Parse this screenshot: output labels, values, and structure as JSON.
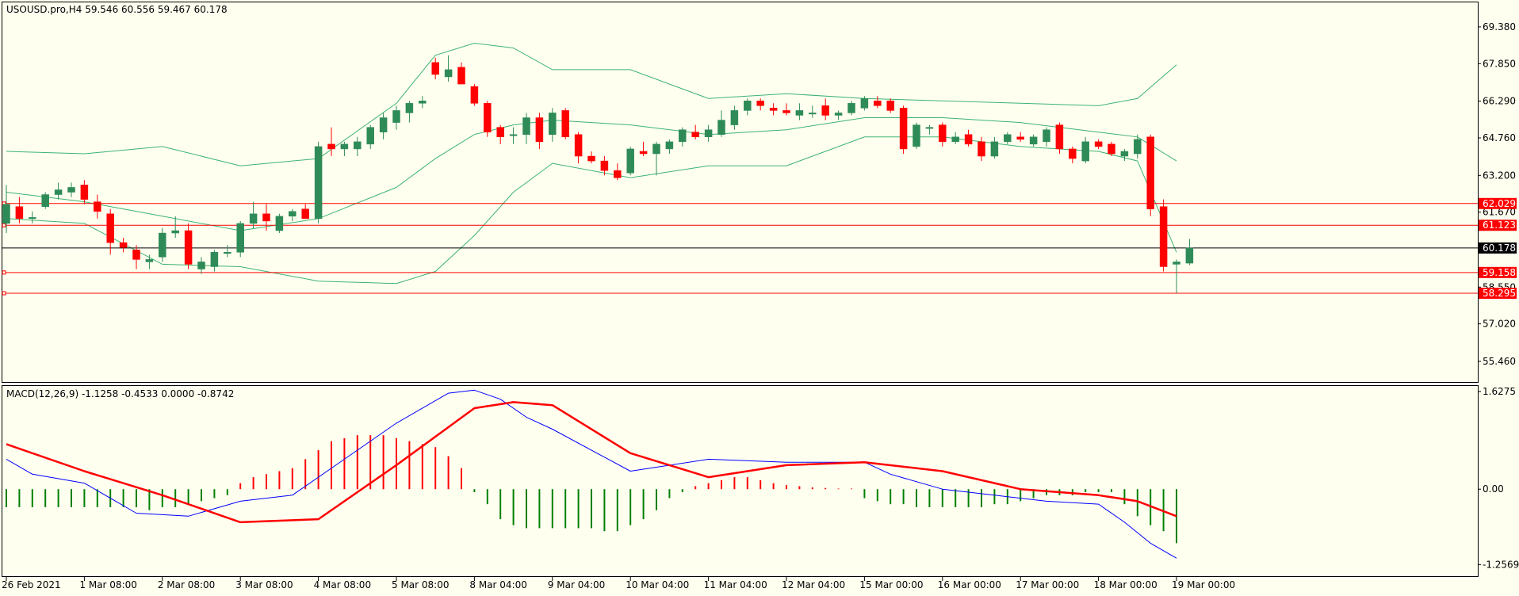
{
  "window": {
    "symbol_label": "USOUSD.pro,H4  59.546 60.556 59.467 60.178"
  },
  "chart_data": {
    "type": "candlestick",
    "price_ticks": [
      69.38,
      67.85,
      66.29,
      64.76,
      63.2,
      61.67,
      58.55,
      57.02,
      55.46
    ],
    "price_tick_labels": [
      "69.380",
      "67.850",
      "66.290",
      "64.760",
      "63.200",
      "61.670",
      "58.550",
      "57.020",
      "55.460"
    ],
    "price_range": [
      54.6,
      70.4
    ],
    "current_price": {
      "value": 60.178,
      "label": "60.178",
      "color": "#000000"
    },
    "horizontal_lines": [
      {
        "value": 62.029,
        "label": "62.029",
        "color": "#FF0000"
      },
      {
        "value": 61.123,
        "label": "61.123",
        "color": "#FF0000"
      },
      {
        "value": 59.158,
        "label": "59.158",
        "color": "#FF0000"
      },
      {
        "value": 58.295,
        "label": "58.295",
        "color": "#FF0000"
      }
    ],
    "x_labels": [
      "26 Feb 2021",
      "1 Mar 08:00",
      "2 Mar 08:00",
      "3 Mar 08:00",
      "4 Mar 08:00",
      "5 Mar 08:00",
      "8 Mar 04:00",
      "9 Mar 04:00",
      "10 Mar 04:00",
      "11 Mar 04:00",
      "12 Mar 04:00",
      "15 Mar 00:00",
      "16 Mar 00:00",
      "17 Mar 00:00",
      "18 Mar 00:00",
      "19 Mar 00:00"
    ],
    "x_label_bars": [
      0,
      6,
      12,
      18,
      24,
      30,
      36,
      42,
      48,
      54,
      60,
      66,
      72,
      78,
      84,
      90
    ],
    "bull_color": "#2E8B57",
    "bear_color": "#FF0000",
    "band_color": "#3CB371",
    "candles": [
      {
        "o": 61.2,
        "h": 62.8,
        "l": 60.8,
        "c": 62.0
      },
      {
        "o": 61.9,
        "h": 62.3,
        "l": 61.2,
        "c": 61.4
      },
      {
        "o": 61.4,
        "h": 61.7,
        "l": 61.2,
        "c": 61.45
      },
      {
        "o": 61.9,
        "h": 62.5,
        "l": 61.8,
        "c": 62.4
      },
      {
        "o": 62.4,
        "h": 62.9,
        "l": 62.2,
        "c": 62.6
      },
      {
        "o": 62.5,
        "h": 62.9,
        "l": 62.3,
        "c": 62.7
      },
      {
        "o": 62.8,
        "h": 63.0,
        "l": 62.0,
        "c": 62.2
      },
      {
        "o": 62.1,
        "h": 62.4,
        "l": 61.4,
        "c": 61.7
      },
      {
        "o": 61.6,
        "h": 61.8,
        "l": 59.9,
        "c": 60.4
      },
      {
        "o": 60.4,
        "h": 60.6,
        "l": 60.0,
        "c": 60.2
      },
      {
        "o": 60.1,
        "h": 60.3,
        "l": 59.3,
        "c": 59.7
      },
      {
        "o": 59.6,
        "h": 59.9,
        "l": 59.3,
        "c": 59.7
      },
      {
        "o": 59.8,
        "h": 61.0,
        "l": 59.6,
        "c": 60.8
      },
      {
        "o": 60.8,
        "h": 61.5,
        "l": 60.6,
        "c": 60.9
      },
      {
        "o": 60.9,
        "h": 61.2,
        "l": 59.3,
        "c": 59.5
      },
      {
        "o": 59.3,
        "h": 59.8,
        "l": 59.1,
        "c": 59.6
      },
      {
        "o": 59.4,
        "h": 60.1,
        "l": 59.2,
        "c": 60.0
      },
      {
        "o": 60.0,
        "h": 60.3,
        "l": 59.8,
        "c": 60.0
      },
      {
        "o": 60.0,
        "h": 61.3,
        "l": 59.8,
        "c": 61.2
      },
      {
        "o": 61.2,
        "h": 62.1,
        "l": 61.0,
        "c": 61.6
      },
      {
        "o": 61.6,
        "h": 62.0,
        "l": 60.9,
        "c": 61.3
      },
      {
        "o": 60.9,
        "h": 61.6,
        "l": 60.8,
        "c": 61.5
      },
      {
        "o": 61.5,
        "h": 61.8,
        "l": 61.3,
        "c": 61.7
      },
      {
        "o": 61.8,
        "h": 62.0,
        "l": 61.4,
        "c": 61.4
      },
      {
        "o": 61.4,
        "h": 64.6,
        "l": 61.2,
        "c": 64.4
      },
      {
        "o": 64.5,
        "h": 65.2,
        "l": 64.0,
        "c": 64.3
      },
      {
        "o": 64.3,
        "h": 64.6,
        "l": 64.0,
        "c": 64.5
      },
      {
        "o": 64.3,
        "h": 64.8,
        "l": 64.0,
        "c": 64.6
      },
      {
        "o": 64.5,
        "h": 65.3,
        "l": 64.3,
        "c": 65.2
      },
      {
        "o": 65.0,
        "h": 65.8,
        "l": 64.7,
        "c": 65.6
      },
      {
        "o": 65.4,
        "h": 66.1,
        "l": 65.1,
        "c": 65.9
      },
      {
        "o": 65.8,
        "h": 66.3,
        "l": 65.4,
        "c": 66.2
      },
      {
        "o": 66.2,
        "h": 66.5,
        "l": 66.0,
        "c": 66.3
      },
      {
        "o": 67.9,
        "h": 68.1,
        "l": 67.2,
        "c": 67.4
      },
      {
        "o": 67.3,
        "h": 68.2,
        "l": 67.1,
        "c": 67.6
      },
      {
        "o": 67.7,
        "h": 67.9,
        "l": 67.0,
        "c": 67.0
      },
      {
        "o": 66.9,
        "h": 67.0,
        "l": 66.1,
        "c": 66.2
      },
      {
        "o": 66.2,
        "h": 66.3,
        "l": 64.8,
        "c": 65.0
      },
      {
        "o": 65.2,
        "h": 65.3,
        "l": 64.5,
        "c": 64.8
      },
      {
        "o": 64.9,
        "h": 65.2,
        "l": 64.5,
        "c": 64.9
      },
      {
        "o": 64.9,
        "h": 65.8,
        "l": 64.5,
        "c": 65.6
      },
      {
        "o": 65.6,
        "h": 65.8,
        "l": 64.3,
        "c": 64.6
      },
      {
        "o": 64.9,
        "h": 66.0,
        "l": 64.6,
        "c": 65.8
      },
      {
        "o": 65.9,
        "h": 66.0,
        "l": 64.7,
        "c": 64.8
      },
      {
        "o": 64.9,
        "h": 65.0,
        "l": 63.7,
        "c": 64.0
      },
      {
        "o": 64.0,
        "h": 64.2,
        "l": 63.7,
        "c": 63.8
      },
      {
        "o": 63.8,
        "h": 64.0,
        "l": 63.2,
        "c": 63.4
      },
      {
        "o": 63.4,
        "h": 63.7,
        "l": 63.0,
        "c": 63.1
      },
      {
        "o": 63.3,
        "h": 64.4,
        "l": 63.2,
        "c": 64.3
      },
      {
        "o": 64.2,
        "h": 64.6,
        "l": 64.0,
        "c": 64.1
      },
      {
        "o": 64.1,
        "h": 64.6,
        "l": 63.2,
        "c": 64.5
      },
      {
        "o": 64.3,
        "h": 64.7,
        "l": 64.1,
        "c": 64.6
      },
      {
        "o": 64.6,
        "h": 65.2,
        "l": 64.4,
        "c": 65.1
      },
      {
        "o": 65.0,
        "h": 65.3,
        "l": 64.7,
        "c": 64.8
      },
      {
        "o": 64.8,
        "h": 65.3,
        "l": 64.6,
        "c": 65.1
      },
      {
        "o": 64.9,
        "h": 65.9,
        "l": 64.8,
        "c": 65.5
      },
      {
        "o": 65.3,
        "h": 66.1,
        "l": 65.1,
        "c": 65.9
      },
      {
        "o": 65.9,
        "h": 66.4,
        "l": 65.7,
        "c": 66.3
      },
      {
        "o": 66.3,
        "h": 66.4,
        "l": 65.9,
        "c": 66.1
      },
      {
        "o": 66.0,
        "h": 66.2,
        "l": 65.7,
        "c": 65.9
      },
      {
        "o": 65.9,
        "h": 66.2,
        "l": 65.7,
        "c": 65.8
      },
      {
        "o": 65.7,
        "h": 66.2,
        "l": 65.5,
        "c": 65.9
      },
      {
        "o": 65.8,
        "h": 66.1,
        "l": 65.6,
        "c": 65.8
      },
      {
        "o": 66.1,
        "h": 66.4,
        "l": 65.5,
        "c": 65.7
      },
      {
        "o": 65.7,
        "h": 65.9,
        "l": 65.5,
        "c": 65.8
      },
      {
        "o": 65.8,
        "h": 66.3,
        "l": 65.7,
        "c": 66.2
      },
      {
        "o": 66.0,
        "h": 66.5,
        "l": 65.9,
        "c": 66.4
      },
      {
        "o": 66.3,
        "h": 66.5,
        "l": 66.0,
        "c": 66.1
      },
      {
        "o": 66.3,
        "h": 66.4,
        "l": 65.8,
        "c": 65.9
      },
      {
        "o": 66.0,
        "h": 66.1,
        "l": 64.1,
        "c": 64.3
      },
      {
        "o": 64.4,
        "h": 65.4,
        "l": 64.3,
        "c": 65.3
      },
      {
        "o": 65.2,
        "h": 65.3,
        "l": 64.9,
        "c": 65.2
      },
      {
        "o": 65.3,
        "h": 65.4,
        "l": 64.4,
        "c": 64.6
      },
      {
        "o": 64.6,
        "h": 65.0,
        "l": 64.5,
        "c": 64.8
      },
      {
        "o": 64.9,
        "h": 65.1,
        "l": 64.4,
        "c": 64.5
      },
      {
        "o": 64.6,
        "h": 64.8,
        "l": 63.8,
        "c": 64.0
      },
      {
        "o": 64.0,
        "h": 64.8,
        "l": 63.9,
        "c": 64.6
      },
      {
        "o": 64.6,
        "h": 65.0,
        "l": 64.5,
        "c": 64.9
      },
      {
        "o": 64.8,
        "h": 65.0,
        "l": 64.6,
        "c": 64.7
      },
      {
        "o": 64.5,
        "h": 64.9,
        "l": 64.4,
        "c": 64.8
      },
      {
        "o": 64.6,
        "h": 65.2,
        "l": 64.4,
        "c": 65.1
      },
      {
        "o": 65.3,
        "h": 65.4,
        "l": 64.1,
        "c": 64.3
      },
      {
        "o": 64.3,
        "h": 64.4,
        "l": 63.7,
        "c": 63.9
      },
      {
        "o": 63.8,
        "h": 64.8,
        "l": 63.7,
        "c": 64.6
      },
      {
        "o": 64.6,
        "h": 64.7,
        "l": 64.3,
        "c": 64.4
      },
      {
        "o": 64.5,
        "h": 64.6,
        "l": 64.0,
        "c": 64.1
      },
      {
        "o": 64.0,
        "h": 64.3,
        "l": 63.8,
        "c": 64.2
      },
      {
        "o": 64.1,
        "h": 64.9,
        "l": 63.9,
        "c": 64.7
      },
      {
        "o": 64.8,
        "h": 64.9,
        "l": 61.5,
        "c": 61.8
      },
      {
        "o": 61.9,
        "h": 62.2,
        "l": 59.2,
        "c": 59.4
      },
      {
        "o": 59.5,
        "h": 59.7,
        "l": 58.3,
        "c": 59.6
      },
      {
        "o": 59.546,
        "h": 60.556,
        "l": 59.467,
        "c": 60.178
      }
    ],
    "bands": {
      "upper_x": [
        0,
        6,
        12,
        18,
        24,
        30,
        33,
        36,
        39,
        42,
        48,
        54,
        60,
        66,
        72,
        78,
        84,
        87,
        90
      ],
      "upper": [
        64.2,
        64.1,
        64.4,
        63.6,
        63.9,
        66.2,
        68.2,
        68.7,
        68.5,
        67.6,
        67.6,
        66.4,
        66.6,
        66.4,
        66.3,
        66.2,
        66.1,
        66.4,
        67.8
      ],
      "middle_x": [
        0,
        6,
        12,
        18,
        24,
        30,
        33,
        36,
        39,
        42,
        48,
        54,
        60,
        66,
        72,
        78,
        84,
        87,
        90
      ],
      "middle": [
        62.5,
        62.1,
        61.5,
        60.9,
        61.4,
        62.7,
        63.9,
        64.9,
        65.3,
        65.5,
        65.3,
        64.9,
        65.1,
        65.6,
        65.6,
        65.4,
        65.0,
        64.8,
        63.8
      ],
      "lower_x": [
        0,
        6,
        12,
        18,
        24,
        30,
        33,
        36,
        39,
        42,
        48,
        54,
        60,
        66,
        72,
        78,
        84,
        87,
        90
      ],
      "lower": [
        61.4,
        61.2,
        59.5,
        59.4,
        58.8,
        58.7,
        59.2,
        60.7,
        62.5,
        63.7,
        63.1,
        63.6,
        63.6,
        64.8,
        64.8,
        64.4,
        64.2,
        63.8,
        60.0
      ]
    },
    "macd": {
      "label": "MACD(12,26,9) -1.1258 -0.4533 0.0000 -0.8742",
      "ticks": [
        1.6275,
        0.0,
        -1.2569
      ],
      "tick_labels": [
        "1.6275",
        "0.00",
        "-1.2569"
      ],
      "range": [
        -1.45,
        1.72
      ],
      "signal_color": "#FF0000",
      "macd_line_color": "#0000FF",
      "hist_pos_color": "#FF0000",
      "hist_neg_color": "#008000",
      "signal_x": [
        0,
        6,
        12,
        18,
        24,
        30,
        36,
        39,
        42,
        48,
        54,
        60,
        66,
        72,
        78,
        84,
        87,
        90
      ],
      "signal": [
        0.75,
        0.3,
        -0.1,
        -0.55,
        -0.5,
        0.4,
        1.35,
        1.45,
        1.4,
        0.6,
        0.2,
        0.4,
        0.45,
        0.3,
        0.0,
        -0.1,
        -0.2,
        -0.45
      ],
      "macd_x": [
        0,
        2,
        6,
        10,
        14,
        18,
        22,
        26,
        30,
        34,
        36,
        38,
        40,
        42,
        48,
        54,
        60,
        66,
        68,
        72,
        76,
        80,
        84,
        86,
        88,
        90
      ],
      "macd_line": [
        0.5,
        0.25,
        0.1,
        -0.4,
        -0.45,
        -0.2,
        -0.1,
        0.5,
        1.1,
        1.6,
        1.65,
        1.5,
        1.2,
        1.0,
        0.3,
        0.5,
        0.45,
        0.45,
        0.25,
        0.0,
        -0.1,
        -0.2,
        -0.25,
        -0.55,
        -0.9,
        -1.15
      ],
      "histogram": [
        -0.3,
        -0.3,
        -0.3,
        -0.3,
        -0.3,
        -0.3,
        -0.3,
        -0.3,
        -0.3,
        -0.3,
        -0.3,
        -0.35,
        -0.3,
        -0.3,
        -0.25,
        -0.2,
        -0.15,
        -0.1,
        0.1,
        0.2,
        0.25,
        0.3,
        0.35,
        0.5,
        0.65,
        0.8,
        0.85,
        0.9,
        0.9,
        0.9,
        0.85,
        0.8,
        0.75,
        0.7,
        0.55,
        0.35,
        -0.05,
        -0.25,
        -0.5,
        -0.6,
        -0.65,
        -0.65,
        -0.65,
        -0.65,
        -0.65,
        -0.65,
        -0.7,
        -0.7,
        -0.6,
        -0.5,
        -0.35,
        -0.15,
        -0.05,
        0.05,
        0.1,
        0.15,
        0.2,
        0.2,
        0.15,
        0.1,
        0.07,
        0.05,
        0.03,
        0.02,
        0.01,
        0.01,
        -0.15,
        -0.2,
        -0.25,
        -0.25,
        -0.3,
        -0.3,
        -0.3,
        -0.3,
        -0.3,
        -0.3,
        -0.25,
        -0.25,
        -0.2,
        -0.15,
        -0.1,
        -0.1,
        -0.1,
        -0.05,
        -0.05,
        -0.05,
        -0.25,
        -0.45,
        -0.6,
        -0.7,
        -0.9
      ]
    }
  }
}
